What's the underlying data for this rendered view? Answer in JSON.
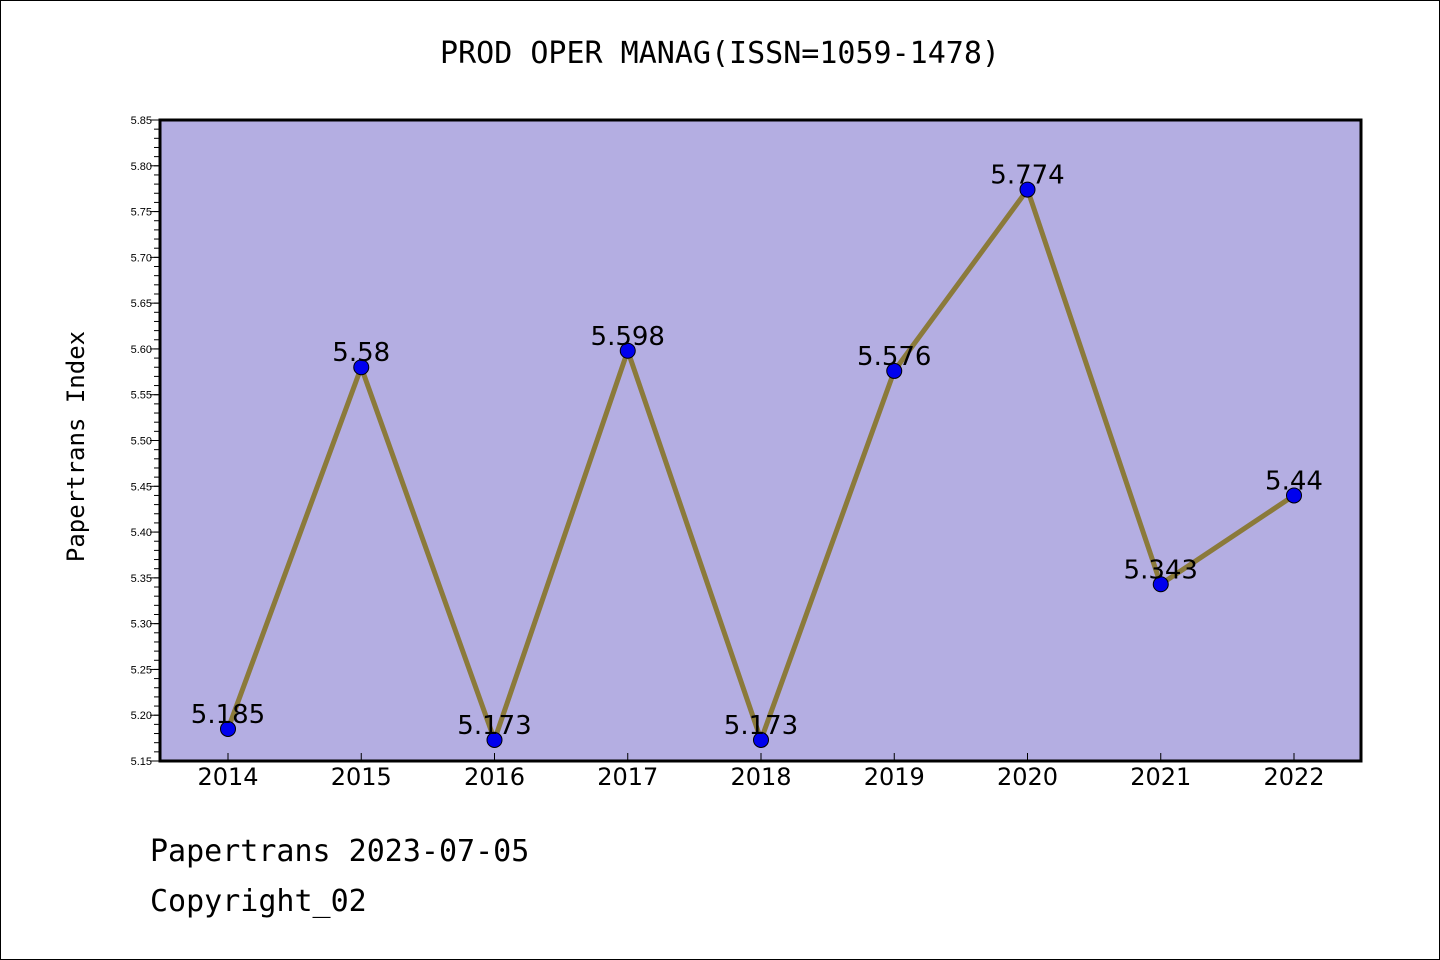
{
  "title": "PROD OPER MANAG(ISSN=1059-1478)",
  "footer": {
    "date_line": "Papertrans 2023-07-05",
    "copyright_line": "Copyright_02"
  },
  "chart_data": {
    "type": "line",
    "title": "PROD OPER MANAG(ISSN=1059-1478)",
    "xlabel": "",
    "ylabel": "Papertrans Index",
    "categories": [
      "2014",
      "2015",
      "2016",
      "2017",
      "2018",
      "2019",
      "2020",
      "2021",
      "2022"
    ],
    "values": [
      5.185,
      5.58,
      5.173,
      5.598,
      5.173,
      5.576,
      5.774,
      5.343,
      5.44
    ],
    "data_labels": [
      "5.185",
      "5.58",
      "5.173",
      "5.598",
      "5.173",
      "5.576",
      "5.774",
      "5.343",
      "5.44"
    ],
    "ylim": [
      5.15,
      5.85
    ],
    "yticks": [
      "5.15",
      "5.20",
      "5.25",
      "5.30",
      "5.35",
      "5.40",
      "5.45",
      "5.50",
      "5.55",
      "5.60",
      "5.65",
      "5.70",
      "5.75",
      "5.80",
      "5.85"
    ],
    "grid": false,
    "colors": {
      "plot_background": "#b4aee2",
      "line": "#8b7a3a",
      "marker": "#0000ee"
    }
  }
}
